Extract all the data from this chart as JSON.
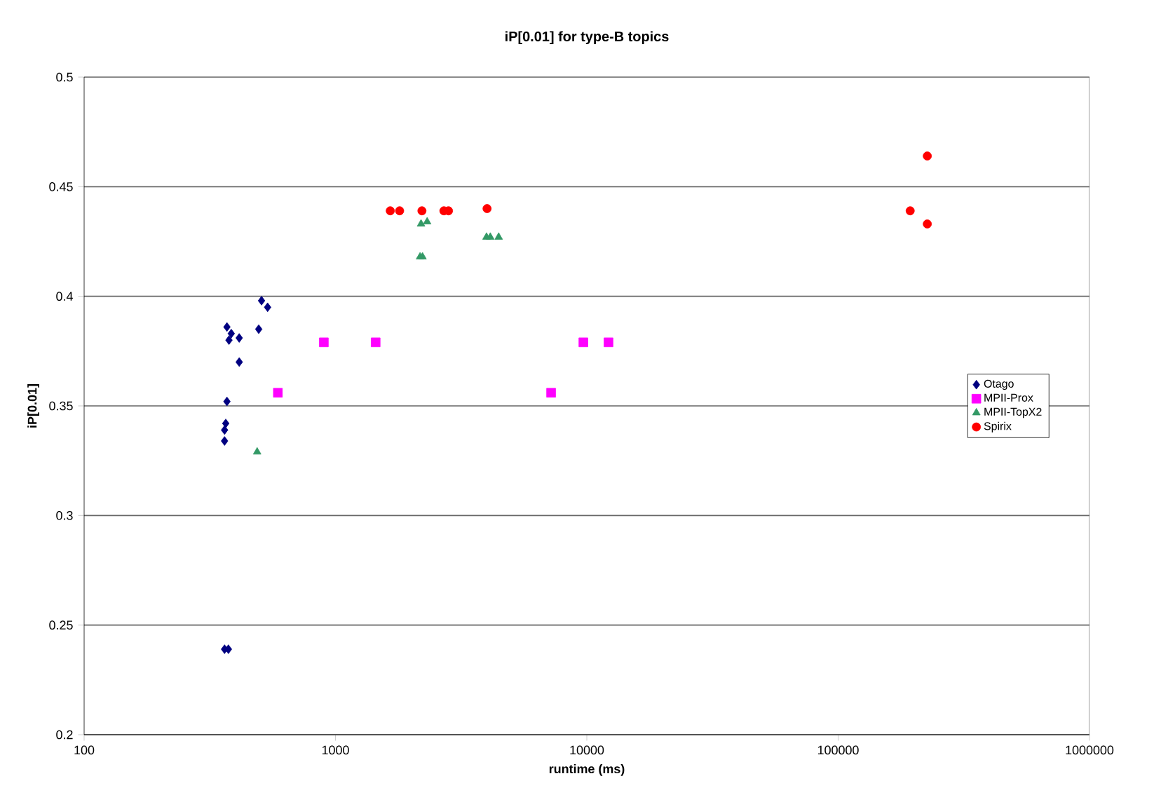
{
  "chart_data": {
    "type": "scatter",
    "title": "iP[0.01] for type-B topics",
    "xlabel": "runtime (ms)",
    "ylabel": "iP[0.01]",
    "log": "x",
    "xlim": [
      100,
      1000000
    ],
    "xticks": [
      100,
      1000,
      10000,
      100000,
      1000000
    ],
    "ylim": [
      0.2,
      0.5
    ],
    "yticks": [
      0.2,
      0.25,
      0.3,
      0.35,
      0.4,
      0.45,
      0.5
    ],
    "grid": "y",
    "legend": "right",
    "series": [
      {
        "name": "Otago",
        "color": "#000080",
        "marker": "diamond",
        "x": [
          362,
          375,
          370,
          377,
          414,
          508,
          537,
          495,
          385,
          370,
          414,
          366,
          362,
          362
        ],
        "values": [
          0.239,
          0.239,
          0.386,
          0.38,
          0.381,
          0.398,
          0.395,
          0.385,
          0.383,
          0.352,
          0.37,
          0.342,
          0.339,
          0.334
        ]
      },
      {
        "name": "MPII-Prox",
        "color": "#ff00ff",
        "marker": "square",
        "x": [
          899,
          1445,
          590,
          7210,
          9690,
          12200
        ],
        "values": [
          0.379,
          0.379,
          0.356,
          0.356,
          0.379,
          0.379
        ]
      },
      {
        "name": "MPII-TopX2",
        "color": "#339966",
        "marker": "triangle",
        "x": [
          488,
          2190,
          2316,
          2170,
          2220,
          3990,
          4130,
          4460
        ],
        "values": [
          0.329,
          0.433,
          0.434,
          0.418,
          0.418,
          0.427,
          0.427,
          0.427
        ]
      },
      {
        "name": "Spirix",
        "color": "#ff0000",
        "marker": "circle",
        "x": [
          1652,
          1800,
          2208,
          2700,
          2816,
          4010,
          226300,
          193500,
          226300
        ],
        "values": [
          0.439,
          0.439,
          0.439,
          0.439,
          0.439,
          0.44,
          0.464,
          0.439,
          0.433
        ]
      }
    ]
  }
}
